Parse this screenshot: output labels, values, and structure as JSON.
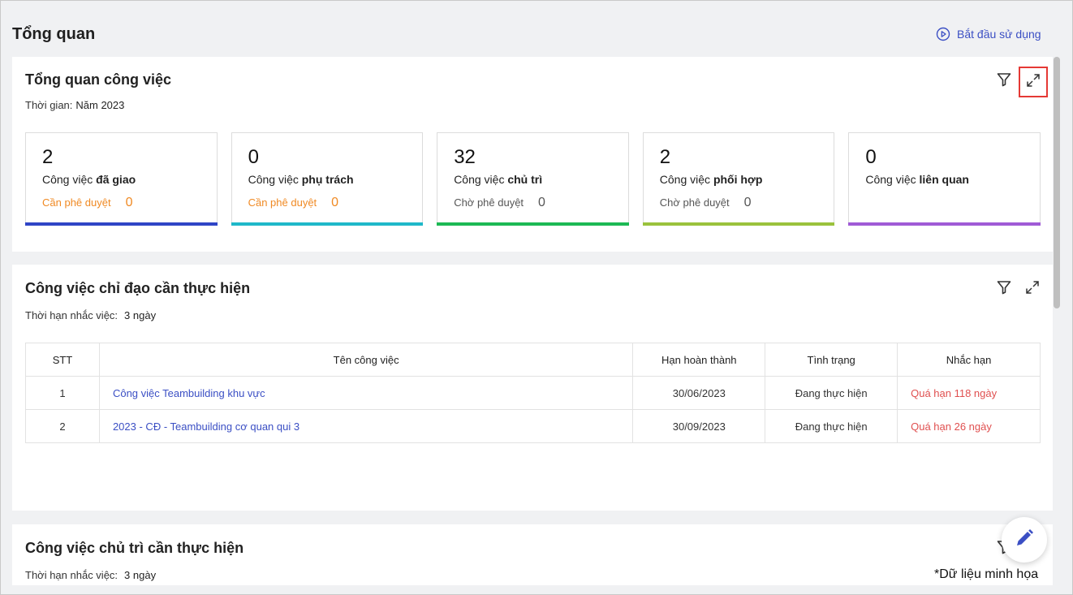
{
  "header": {
    "title": "Tổng quan",
    "start_label": "Bắt đầu sử dụng"
  },
  "overview": {
    "title": "Tổng quan công việc",
    "time_label": "Thời gian:",
    "time_value": "Năm 2023",
    "stats": [
      {
        "count": "2",
        "label_prefix": "Công việc",
        "label_bold": "đã giao",
        "pending_label": "Cần phê duyệt",
        "pending_count": "0",
        "bar_color": "#2f45c6"
      },
      {
        "count": "0",
        "label_prefix": "Công việc",
        "label_bold": "phụ trách",
        "pending_label": "Cần phê duyệt",
        "pending_count": "0",
        "bar_color": "#1fb8c9"
      },
      {
        "count": "32",
        "label_prefix": "Công việc",
        "label_bold": "chủ trì",
        "pending_label": "Chờ phê duyệt",
        "pending_count": "0",
        "bar_color": "#1db954"
      },
      {
        "count": "2",
        "label_prefix": "Công việc",
        "label_bold": "phối hợp",
        "pending_label": "Chờ phê duyệt",
        "pending_count": "0",
        "bar_color": "#9ac23c"
      },
      {
        "count": "0",
        "label_prefix": "Công việc",
        "label_bold": "liên quan",
        "bar_color": "#a05bd6"
      }
    ]
  },
  "directed": {
    "title": "Công việc chỉ đạo cần thực hiện",
    "reminder_label": "Thời hạn nhắc việc:",
    "reminder_value": "3 ngày",
    "columns": [
      "STT",
      "Tên công việc",
      "Hạn hoàn thành",
      "Tình trạng",
      "Nhắc hạn"
    ],
    "rows": [
      {
        "stt": "1",
        "name": "Công việc Teambuilding khu vực",
        "due": "30/06/2023",
        "status": "Đang thực hiện",
        "reminder": "Quá hạn 118 ngày"
      },
      {
        "stt": "2",
        "name": "2023 - CĐ - Teambuilding cơ quan qui 3",
        "due": "30/09/2023",
        "status": "Đang thực hiện",
        "reminder": "Quá hạn 26 ngày"
      }
    ]
  },
  "hosted": {
    "title": "Công việc chủ trì cần thực hiện",
    "reminder_label": "Thời hạn nhắc việc:",
    "reminder_value": "3 ngày"
  },
  "footnote": "*Dữ liệu minh họa",
  "icons": {
    "start": "play-circle-icon",
    "filter": "filter-icon",
    "expand": "expand-icon",
    "edit": "pencil-icon"
  },
  "colors": {
    "accent": "#3b4fc4",
    "overdue": "#e05050",
    "pending_orange": "#f08a24"
  }
}
